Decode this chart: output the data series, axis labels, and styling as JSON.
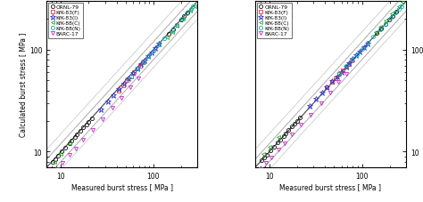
{
  "figsize": [
    4.74,
    2.28
  ],
  "dpi": 100,
  "xlim": [
    7,
    300
  ],
  "ylim": [
    7,
    300
  ],
  "xlabel": "Measured burst stress [ MPa ]",
  "ylabel": "Calculated burst stress [ MPa ]",
  "series": [
    {
      "label": "ORNL-79",
      "marker": "o",
      "color": "#111111",
      "mfc": "none",
      "mew": 0.6,
      "ms": 3.0,
      "x": [
        8.2,
        8.7,
        9.3,
        10.2,
        11.1,
        12.3,
        13.1,
        14.2,
        15.0,
        16.1,
        17.5,
        18.8,
        20.0,
        21.5,
        145,
        162,
        178,
        198,
        215,
        235
      ],
      "y1": [
        8.0,
        8.5,
        9.1,
        10.0,
        10.9,
        12.1,
        12.9,
        14.0,
        14.8,
        15.9,
        17.3,
        18.6,
        19.8,
        21.3,
        143,
        160,
        176,
        196,
        213,
        233
      ],
      "y2": [
        8.3,
        8.8,
        9.4,
        10.3,
        11.2,
        12.4,
        13.2,
        14.3,
        15.1,
        16.2,
        17.6,
        18.9,
        20.1,
        21.6,
        146,
        163,
        179,
        199,
        216,
        236
      ]
    },
    {
      "label": "KfK-83(F)",
      "marker": "s",
      "color": "#ee3333",
      "mfc": "none",
      "mew": 0.6,
      "ms": 2.8,
      "x": [
        42,
        47,
        52,
        57,
        62,
        67,
        72,
        77
      ],
      "y1": [
        40,
        45,
        50,
        55,
        60,
        65,
        70,
        75
      ],
      "y2": [
        43,
        48,
        53,
        58,
        63,
        68,
        73,
        78
      ]
    },
    {
      "label": "KfK-83(I)",
      "marker": "*",
      "color": "#3333cc",
      "mfc": "none",
      "mew": 0.6,
      "ms": 4.5,
      "x": [
        27,
        32,
        37,
        42,
        48,
        54,
        60,
        67,
        73,
        80,
        87,
        95,
        105,
        115
      ],
      "y1": [
        26,
        31,
        36,
        41,
        47,
        53,
        59,
        66,
        72,
        79,
        86,
        94,
        104,
        114
      ],
      "y2": [
        28,
        33,
        38,
        43,
        49,
        55,
        61,
        68,
        74,
        81,
        88,
        96,
        106,
        116
      ]
    },
    {
      "label": "KfK-88(C)",
      "marker": "<",
      "color": "#22aa22",
      "mfc": "none",
      "mew": 0.6,
      "ms": 2.8,
      "x": [
        8.5,
        10.0,
        12.5,
        140,
        158,
        180,
        210,
        250,
        275
      ],
      "y1": [
        8.0,
        9.5,
        12.0,
        132,
        150,
        172,
        202,
        242,
        267
      ],
      "y2": [
        9.5,
        11.2,
        14.0,
        150,
        170,
        194,
        228,
        270,
        295
      ]
    },
    {
      "label": "KfK-88(N)",
      "marker": "o",
      "color": "#00bbbb",
      "mfc": "none",
      "mew": 0.6,
      "ms": 3.0,
      "x": [
        57,
        67,
        78,
        88,
        100,
        115,
        132,
        158,
        178,
        205,
        228,
        252,
        268
      ],
      "y1": [
        55,
        65,
        76,
        86,
        98,
        113,
        130,
        156,
        176,
        203,
        226,
        250,
        266
      ],
      "y2": [
        59,
        69,
        80,
        90,
        102,
        117,
        134,
        160,
        180,
        207,
        230,
        254,
        270
      ]
    },
    {
      "label": "BARC-17",
      "marker": "v",
      "color": "#cc22cc",
      "mfc": "none",
      "mew": 0.6,
      "ms": 3.0,
      "x": [
        8.0,
        9.2,
        10.5,
        12.5,
        14.5,
        17.5,
        22,
        28,
        36,
        45,
        56,
        68
      ],
      "y1": [
        6.0,
        6.8,
        7.8,
        9.3,
        10.8,
        13.0,
        16.5,
        21,
        27,
        34,
        43,
        53
      ],
      "y2": [
        6.8,
        7.8,
        8.8,
        10.5,
        12.2,
        14.8,
        18.5,
        23,
        30,
        38,
        48,
        58
      ]
    }
  ]
}
